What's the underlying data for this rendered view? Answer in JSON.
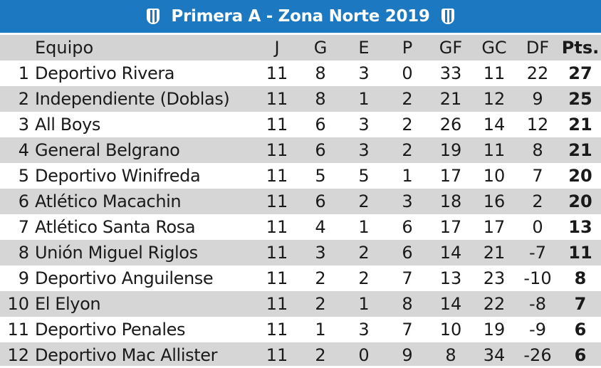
{
  "title": "Primera A - Zona Norte 2019",
  "headers": {
    "team": "Equipo",
    "j": "J",
    "g": "G",
    "e": "E",
    "p": "P",
    "gf": "GF",
    "gc": "GC",
    "df": "DF",
    "pts": "Pts."
  },
  "rows": [
    {
      "pos": "1",
      "team": "Deportivo Rivera",
      "j": "11",
      "g": "8",
      "e": "3",
      "p": "0",
      "gf": "33",
      "gc": "11",
      "df": "22",
      "pts": "27"
    },
    {
      "pos": "2",
      "team": "Independiente (Doblas)",
      "j": "11",
      "g": "8",
      "e": "1",
      "p": "2",
      "gf": "21",
      "gc": "12",
      "df": "9",
      "pts": "25"
    },
    {
      "pos": "3",
      "team": "All Boys",
      "j": "11",
      "g": "6",
      "e": "3",
      "p": "2",
      "gf": "26",
      "gc": "14",
      "df": "12",
      "pts": "21"
    },
    {
      "pos": "4",
      "team": "General Belgrano",
      "j": "11",
      "g": "6",
      "e": "3",
      "p": "2",
      "gf": "19",
      "gc": "11",
      "df": "8",
      "pts": "21"
    },
    {
      "pos": "5",
      "team": "Deportivo Winifreda",
      "j": "11",
      "g": "5",
      "e": "5",
      "p": "1",
      "gf": "17",
      "gc": "10",
      "df": "7",
      "pts": "20"
    },
    {
      "pos": "6",
      "team": "Atlético Macachin",
      "j": "11",
      "g": "6",
      "e": "2",
      "p": "3",
      "gf": "18",
      "gc": "16",
      "df": "2",
      "pts": "20"
    },
    {
      "pos": "7",
      "team": "Atlético Santa Rosa",
      "j": "11",
      "g": "4",
      "e": "1",
      "p": "6",
      "gf": "17",
      "gc": "17",
      "df": "0",
      "pts": "13"
    },
    {
      "pos": "8",
      "team": "Unión Miguel Riglos",
      "j": "11",
      "g": "3",
      "e": "2",
      "p": "6",
      "gf": "14",
      "gc": "21",
      "df": "-7",
      "pts": "11"
    },
    {
      "pos": "9",
      "team": "Deportivo Anguilense",
      "j": "11",
      "g": "2",
      "e": "2",
      "p": "7",
      "gf": "13",
      "gc": "23",
      "df": "-10",
      "pts": "8"
    },
    {
      "pos": "10",
      "team": "El Elyon",
      "j": "11",
      "g": "2",
      "e": "1",
      "p": "8",
      "gf": "14",
      "gc": "22",
      "df": "-8",
      "pts": "7"
    },
    {
      "pos": "11",
      "team": "Deportivo Penales",
      "j": "11",
      "g": "1",
      "e": "3",
      "p": "7",
      "gf": "10",
      "gc": "19",
      "df": "-9",
      "pts": "6"
    },
    {
      "pos": "12",
      "team": "Deportivo Mac Allister",
      "j": "11",
      "g": "2",
      "e": "0",
      "p": "9",
      "gf": "8",
      "gc": "34",
      "df": "-26",
      "pts": "6"
    }
  ],
  "colors": {
    "title_bg": "#1c78c0",
    "alt_row_bg": "#d6d6d6",
    "text": "#1a1a1a"
  },
  "icons": {
    "title_left": "club-crest-icon",
    "title_right": "club-crest-icon"
  }
}
